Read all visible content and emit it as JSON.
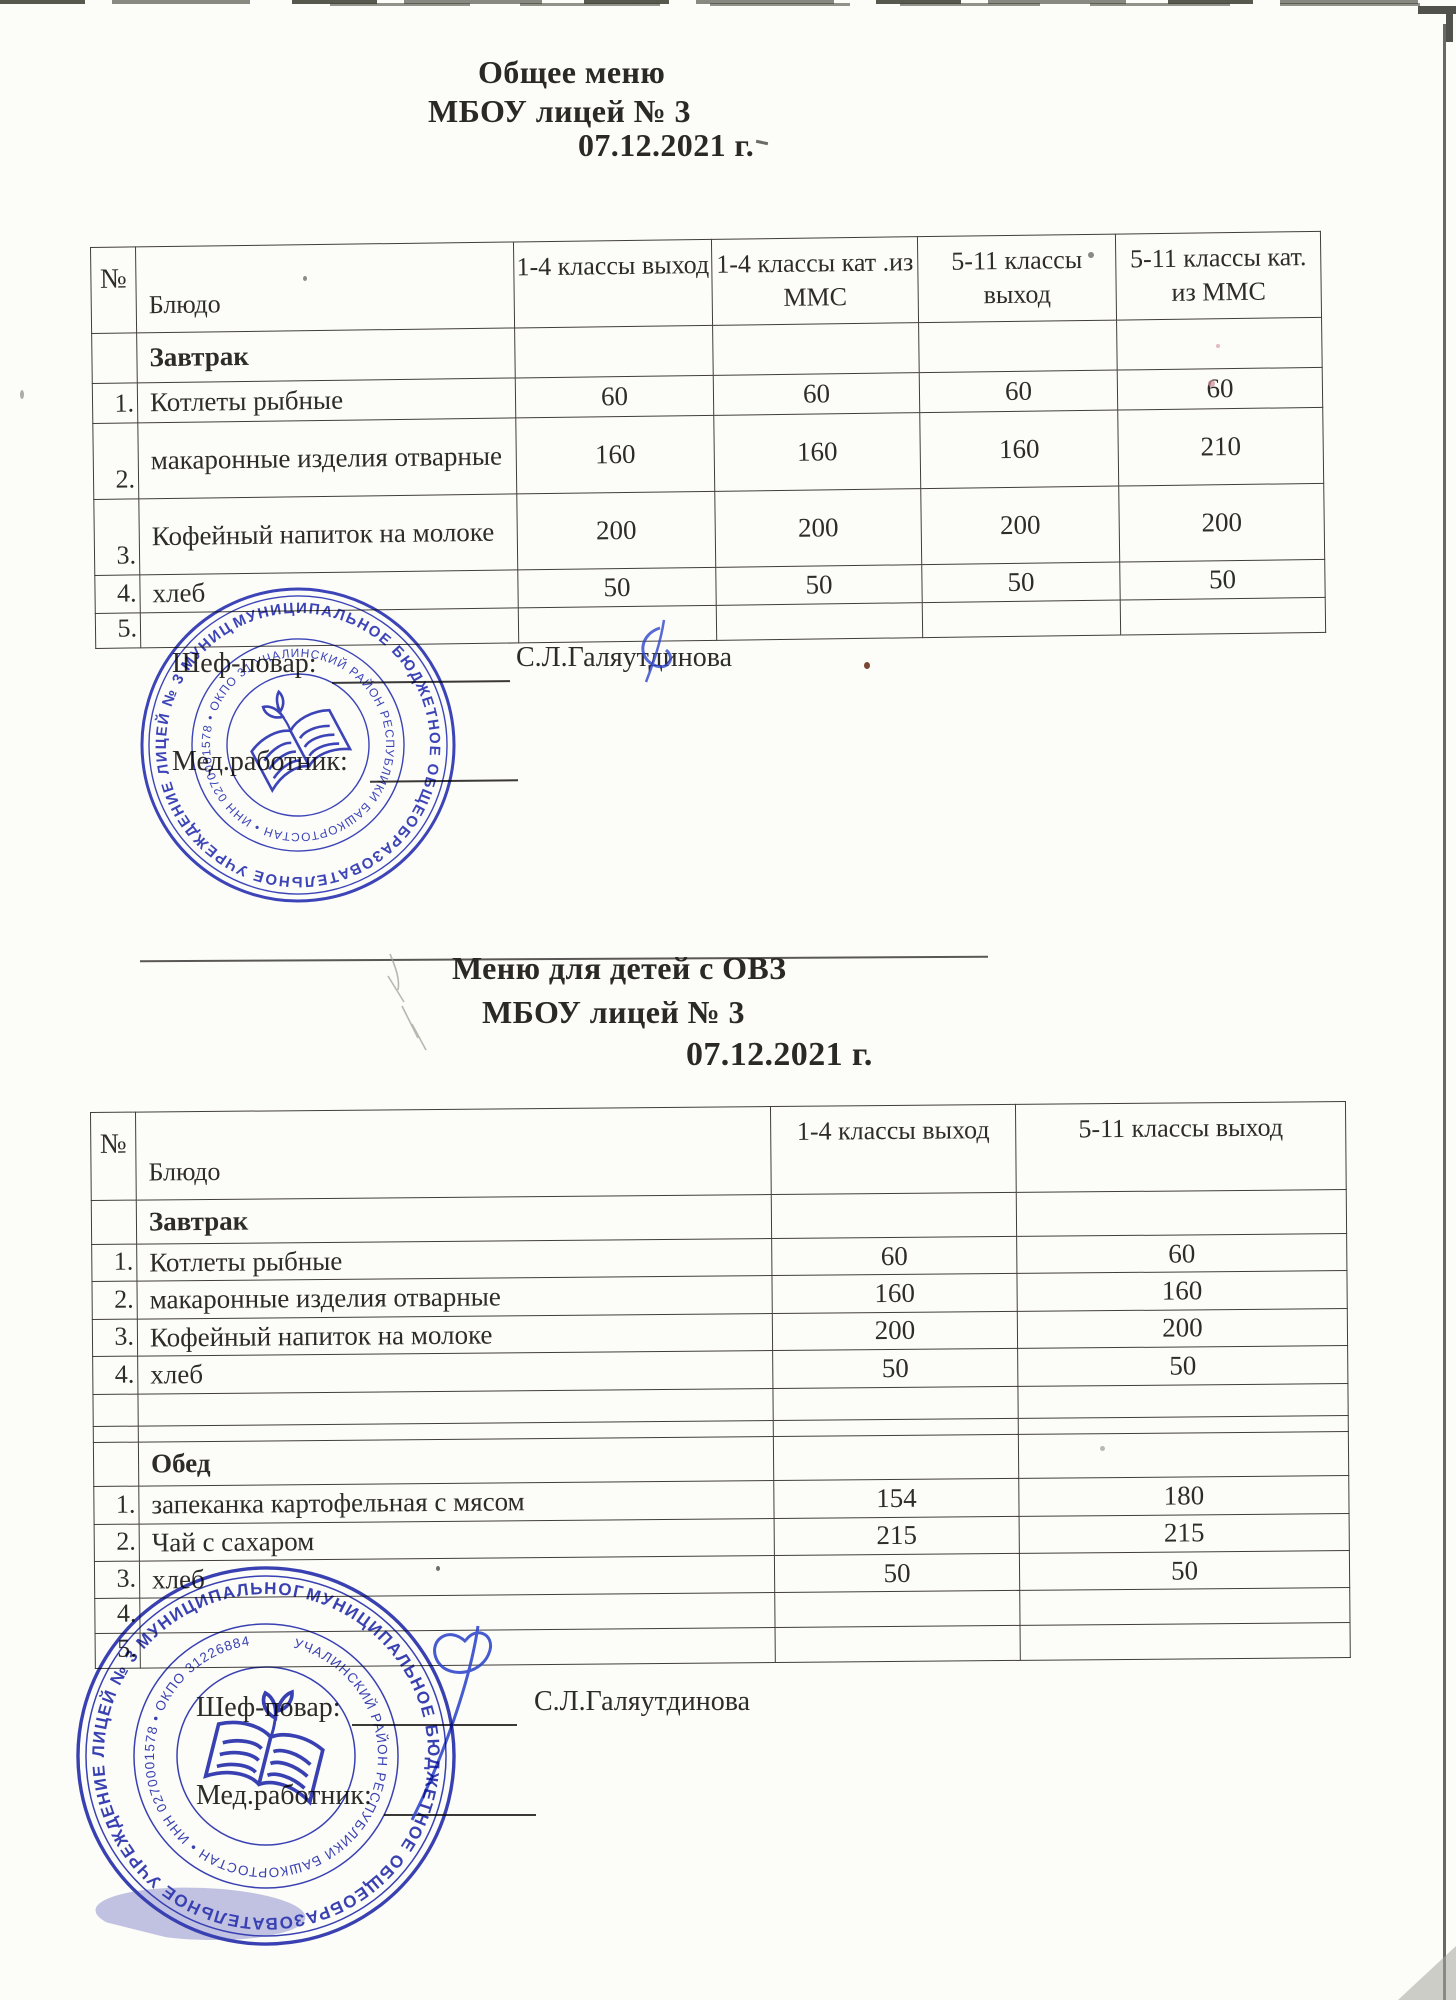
{
  "general_menu": {
    "title": "Общее меню",
    "subtitle": "МБОУ лицей № 3",
    "date": "07.12.2021 г.",
    "table": {
      "headers": {
        "no": "№",
        "dish": "Блюдо",
        "values": [
          "1-4 классы выход",
          "1-4 классы кат .из ММС",
          "5-11 классы выход",
          "5-11 классы кат. из ММС"
        ]
      },
      "rows": [
        {
          "type": "section",
          "no": "",
          "dish": "Завтрак",
          "values": [
            "",
            "",
            "",
            ""
          ]
        },
        {
          "type": "item",
          "no": "1.",
          "dish": "Котлеты рыбные",
          "values": [
            "60",
            "60",
            "60",
            "60"
          ]
        },
        {
          "type": "item",
          "no": "2.",
          "dish": "макаронные изделия отварные",
          "values": [
            "160",
            "160",
            "160",
            "210"
          ]
        },
        {
          "type": "item",
          "no": "3.",
          "dish": "Кофейный напиток на молоке",
          "values": [
            "200",
            "200",
            "200",
            "200"
          ]
        },
        {
          "type": "item",
          "no": "4.",
          "dish": "хлеб",
          "values": [
            "50",
            "50",
            "50",
            "50"
          ]
        },
        {
          "type": "item",
          "no": "5.",
          "dish": "",
          "values": [
            "",
            "",
            "",
            ""
          ]
        }
      ]
    }
  },
  "ovz_menu": {
    "title": "Меню для детей с ОВЗ",
    "subtitle": "МБОУ лицей № 3",
    "date": "07.12.2021 г.",
    "table": {
      "headers": {
        "no": "№",
        "dish": "Блюдо",
        "values": [
          "1-4 классы выход",
          "5-11 классы выход"
        ]
      },
      "rows": [
        {
          "type": "section",
          "no": "",
          "dish": "Завтрак",
          "values": [
            "",
            ""
          ]
        },
        {
          "type": "item",
          "no": "1.",
          "dish": "Котлеты рыбные",
          "values": [
            "60",
            "60"
          ]
        },
        {
          "type": "item",
          "no": "2.",
          "dish": "макаронные изделия отварные",
          "values": [
            "160",
            "160"
          ]
        },
        {
          "type": "item",
          "no": "3.",
          "dish": "Кофейный напиток на молоке",
          "values": [
            "200",
            "200"
          ]
        },
        {
          "type": "item",
          "no": "4.",
          "dish": "хлеб",
          "values": [
            "50",
            "50"
          ]
        },
        {
          "type": "empty",
          "no": "",
          "dish": "",
          "values": [
            "",
            ""
          ]
        },
        {
          "type": "empty",
          "no": "",
          "dish": "",
          "values": [
            "",
            ""
          ]
        },
        {
          "type": "section",
          "no": "",
          "dish": "Обед",
          "values": [
            "",
            ""
          ]
        },
        {
          "type": "item",
          "no": "1.",
          "dish": "запеканка картофельная с мясом",
          "values": [
            "154",
            "180"
          ]
        },
        {
          "type": "item",
          "no": "2.",
          "dish": "Чай с сахаром",
          "values": [
            "215",
            "215"
          ]
        },
        {
          "type": "item",
          "no": "3.",
          "dish": "хлеб",
          "values": [
            "50",
            "50"
          ]
        },
        {
          "type": "item",
          "no": "4.",
          "dish": "",
          "values": [
            "",
            ""
          ]
        },
        {
          "type": "item",
          "no": "5.",
          "dish": "",
          "values": [
            "",
            ""
          ]
        }
      ]
    }
  },
  "signature": {
    "chef_label": "Шеф-повар:",
    "chef_name": "С.Л.Галяутдинова",
    "med_label": "Мед.работник:"
  },
  "stamp": {
    "ring_outer": "МУНИЦИПАЛЬНОЕ БЮДЖЕТНОЕ ОБЩЕОБРАЗОВАТЕЛЬНОЕ УЧРЕЖДЕНИЕ ЛИЦЕЙ № 3 МУНИЦИПАЛЬНОГО РАЙОНА ",
    "ring_middle": "УЧАЛИНСКИЙ РАЙОН РЕСПУБЛИКИ БАШКОРТОСТАН • ИНН 0270001578 • ОКПО 31226884 "
  },
  "colors": {
    "stamp_blue": "#2b35b8",
    "pen_blue": "#2f45cc",
    "ink": "#2e2c29"
  }
}
